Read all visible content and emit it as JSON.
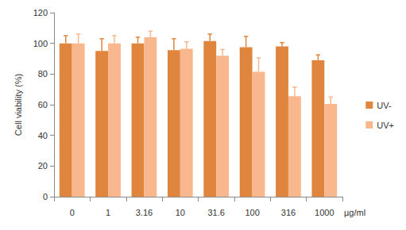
{
  "chart_data": {
    "type": "bar",
    "x_label": "µg/ml",
    "y_label": "Cell viability (%)",
    "categories": [
      "0",
      "1",
      "3.16",
      "10",
      "31.6",
      "100",
      "316",
      "1000"
    ],
    "series": [
      {
        "name": "UV-",
        "color": "#E0853D",
        "values": [
          100,
          95,
          100,
          95.5,
          101.5,
          97.5,
          98,
          89
        ],
        "error": [
          5,
          8,
          4,
          7.5,
          4.5,
          7,
          2.5,
          3.5
        ]
      },
      {
        "name": "UV+",
        "color": "#F9B78E",
        "values": [
          100,
          100,
          104,
          96.5,
          92,
          81.5,
          65.5,
          60.5
        ],
        "error": [
          6,
          5,
          4,
          4.5,
          4,
          9,
          6,
          4.5
        ]
      }
    ],
    "ylim": [
      0,
      120
    ],
    "yticks": [
      0,
      20,
      40,
      60,
      80,
      100,
      120
    ],
    "grid": false,
    "legend": "right"
  }
}
